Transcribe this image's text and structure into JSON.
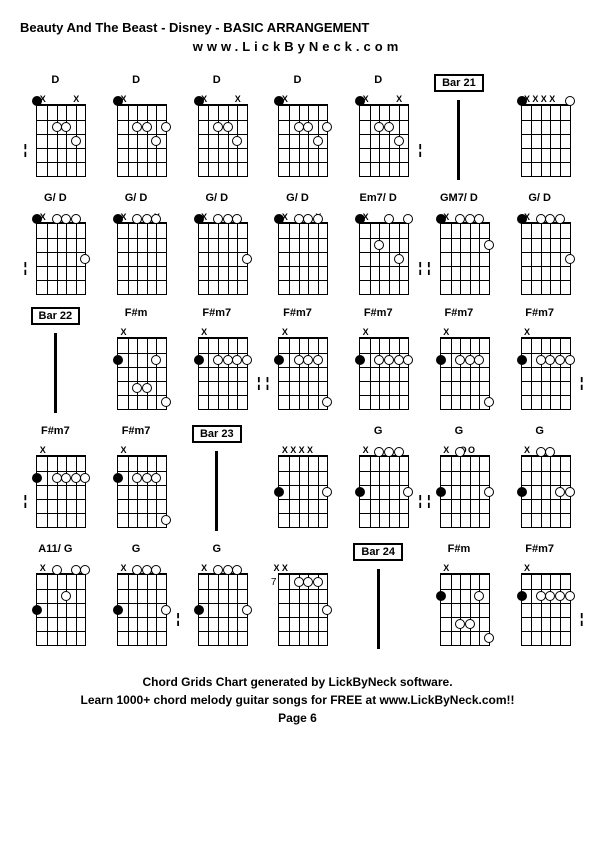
{
  "title": "Beauty And The Beast - Disney - BASIC ARRANGEMENT",
  "url": "www.LickByNeck.com",
  "footer_line1": "Chord Grids Chart generated by LickByNeck software.",
  "footer_line2": "Learn 1000+ chord melody guitar songs for FREE at www.LickByNeck.com!!",
  "page": "Page 6",
  "colors": {
    "background": "#ffffff",
    "text": "#000000",
    "lines": "#000000"
  },
  "fretboard": {
    "strings": 6,
    "frets": 5,
    "width": 48,
    "height": 70
  },
  "cells": [
    {
      "type": "chord",
      "label": "D",
      "mutes": [
        "",
        "X",
        "",
        "",
        "",
        "X"
      ],
      "dots": [
        {
          "s": 0,
          "f": 0,
          "filled": true
        },
        {
          "s": 2,
          "f": 2
        },
        {
          "s": 3,
          "f": 2
        },
        {
          "s": 4,
          "f": 3
        }
      ],
      "dashLeft": true
    },
    {
      "type": "chord",
      "label": "D",
      "mutes": [
        "",
        "X",
        "",
        "",
        "",
        ""
      ],
      "dots": [
        {
          "s": 0,
          "f": 0,
          "filled": true
        },
        {
          "s": 2,
          "f": 2
        },
        {
          "s": 3,
          "f": 2
        },
        {
          "s": 4,
          "f": 3
        },
        {
          "s": 5,
          "f": 2
        }
      ]
    },
    {
      "type": "chord",
      "label": "D",
      "mutes": [
        "",
        "X",
        "",
        "",
        "",
        "X"
      ],
      "dots": [
        {
          "s": 0,
          "f": 0,
          "filled": true
        },
        {
          "s": 2,
          "f": 2
        },
        {
          "s": 3,
          "f": 2
        },
        {
          "s": 4,
          "f": 3
        }
      ]
    },
    {
      "type": "chord",
      "label": "D",
      "mutes": [
        "",
        "X",
        "",
        "",
        "",
        ""
      ],
      "dots": [
        {
          "s": 0,
          "f": 0,
          "filled": true
        },
        {
          "s": 2,
          "f": 2
        },
        {
          "s": 3,
          "f": 2
        },
        {
          "s": 4,
          "f": 3
        },
        {
          "s": 5,
          "f": 2
        }
      ]
    },
    {
      "type": "chord",
      "label": "D",
      "mutes": [
        "",
        "X",
        "",
        "",
        "",
        "X"
      ],
      "dots": [
        {
          "s": 0,
          "f": 0,
          "filled": true
        },
        {
          "s": 2,
          "f": 2
        },
        {
          "s": 3,
          "f": 2
        },
        {
          "s": 4,
          "f": 3
        }
      ],
      "dashRight": true
    },
    {
      "type": "bar",
      "label": "Bar 21"
    },
    {
      "type": "chord",
      "label": "",
      "mutes": [
        "",
        "X",
        "X",
        "X",
        "X",
        ""
      ],
      "dots": [
        {
          "s": 0,
          "f": 0,
          "filled": true
        },
        {
          "s": 5,
          "f": 0
        }
      ]
    },
    {
      "type": "chord",
      "label": "G/ D",
      "mutes": [
        "",
        "X",
        "",
        "",
        "",
        ""
      ],
      "dots": [
        {
          "s": 0,
          "f": 0,
          "filled": true
        },
        {
          "s": 2,
          "f": 0
        },
        {
          "s": 3,
          "f": 0
        },
        {
          "s": 4,
          "f": 0
        },
        {
          "s": 5,
          "f": 3
        }
      ],
      "dashLeft": true
    },
    {
      "type": "chord",
      "label": "G/ D",
      "mutes": [
        "",
        "X",
        "",
        "",
        "",
        "X"
      ],
      "dots": [
        {
          "s": 0,
          "f": 0,
          "filled": true
        },
        {
          "s": 2,
          "f": 0
        },
        {
          "s": 3,
          "f": 0
        },
        {
          "s": 4,
          "f": 0
        }
      ]
    },
    {
      "type": "chord",
      "label": "G/ D",
      "mutes": [
        "",
        "X",
        "",
        "",
        "",
        ""
      ],
      "dots": [
        {
          "s": 0,
          "f": 0,
          "filled": true
        },
        {
          "s": 2,
          "f": 0
        },
        {
          "s": 3,
          "f": 0
        },
        {
          "s": 4,
          "f": 0
        },
        {
          "s": 5,
          "f": 3
        }
      ]
    },
    {
      "type": "chord",
      "label": "G/ D",
      "mutes": [
        "",
        "X",
        "",
        "",
        "",
        "X"
      ],
      "dots": [
        {
          "s": 0,
          "f": 0,
          "filled": true
        },
        {
          "s": 2,
          "f": 0
        },
        {
          "s": 3,
          "f": 0
        },
        {
          "s": 4,
          "f": 0
        }
      ]
    },
    {
      "type": "chord",
      "label": "Em7/ D",
      "mutes": [
        "",
        "X",
        "",
        "",
        "",
        ""
      ],
      "dots": [
        {
          "s": 0,
          "f": 0,
          "filled": true
        },
        {
          "s": 2,
          "f": 2
        },
        {
          "s": 3,
          "f": 0
        },
        {
          "s": 4,
          "f": 3
        },
        {
          "s": 5,
          "f": 0
        }
      ],
      "dashRight": true
    },
    {
      "type": "chord",
      "label": "GM7/ D",
      "mutes": [
        "",
        "X",
        "",
        "",
        "",
        ""
      ],
      "dots": [
        {
          "s": 0,
          "f": 0,
          "filled": true
        },
        {
          "s": 2,
          "f": 0
        },
        {
          "s": 3,
          "f": 0
        },
        {
          "s": 4,
          "f": 0
        },
        {
          "s": 5,
          "f": 2
        }
      ],
      "dashLeft": true
    },
    {
      "type": "chord",
      "label": "G/ D",
      "mutes": [
        "",
        "X",
        "",
        "",
        "",
        ""
      ],
      "dots": [
        {
          "s": 0,
          "f": 0,
          "filled": true
        },
        {
          "s": 2,
          "f": 0
        },
        {
          "s": 3,
          "f": 0
        },
        {
          "s": 4,
          "f": 0
        },
        {
          "s": 5,
          "f": 3
        }
      ]
    },
    {
      "type": "bar",
      "label": "Bar 22"
    },
    {
      "type": "chord",
      "label": "F#m",
      "mutes": [
        "",
        "X",
        "",
        "",
        "",
        ""
      ],
      "dots": [
        {
          "s": 0,
          "f": 2,
          "filled": true
        },
        {
          "s": 2,
          "f": 4
        },
        {
          "s": 3,
          "f": 4
        },
        {
          "s": 4,
          "f": 2
        },
        {
          "s": 5,
          "f": 5
        }
      ]
    },
    {
      "type": "chord",
      "label": "F#m7",
      "mutes": [
        "",
        "X",
        "",
        "",
        "",
        ""
      ],
      "dots": [
        {
          "s": 0,
          "f": 2,
          "filled": true
        },
        {
          "s": 2,
          "f": 2
        },
        {
          "s": 3,
          "f": 2
        },
        {
          "s": 4,
          "f": 2
        },
        {
          "s": 5,
          "f": 2
        }
      ],
      "dashRight": true
    },
    {
      "type": "chord",
      "label": "F#m7",
      "mutes": [
        "",
        "X",
        "",
        "",
        "",
        ""
      ],
      "dots": [
        {
          "s": 0,
          "f": 2,
          "filled": true
        },
        {
          "s": 2,
          "f": 2
        },
        {
          "s": 3,
          "f": 2
        },
        {
          "s": 4,
          "f": 2
        },
        {
          "s": 5,
          "f": 5
        }
      ],
      "dashLeft": true
    },
    {
      "type": "chord",
      "label": "F#m7",
      "mutes": [
        "",
        "X",
        "",
        "",
        "",
        ""
      ],
      "dots": [
        {
          "s": 0,
          "f": 2,
          "filled": true
        },
        {
          "s": 2,
          "f": 2
        },
        {
          "s": 3,
          "f": 2
        },
        {
          "s": 4,
          "f": 2
        },
        {
          "s": 5,
          "f": 2
        }
      ]
    },
    {
      "type": "chord",
      "label": "F#m7",
      "mutes": [
        "",
        "X",
        "",
        "",
        "",
        ""
      ],
      "dots": [
        {
          "s": 0,
          "f": 2,
          "filled": true
        },
        {
          "s": 2,
          "f": 2
        },
        {
          "s": 3,
          "f": 2
        },
        {
          "s": 4,
          "f": 2
        },
        {
          "s": 5,
          "f": 5
        }
      ]
    },
    {
      "type": "chord",
      "label": "F#m7",
      "mutes": [
        "",
        "X",
        "",
        "",
        "",
        ""
      ],
      "dots": [
        {
          "s": 0,
          "f": 2,
          "filled": true
        },
        {
          "s": 2,
          "f": 2
        },
        {
          "s": 3,
          "f": 2
        },
        {
          "s": 4,
          "f": 2
        },
        {
          "s": 5,
          "f": 2
        }
      ],
      "dashRight": true
    },
    {
      "type": "chord",
      "label": "F#m7",
      "mutes": [
        "",
        "X",
        "",
        "",
        "",
        ""
      ],
      "dots": [
        {
          "s": 0,
          "f": 2,
          "filled": true
        },
        {
          "s": 2,
          "f": 2
        },
        {
          "s": 3,
          "f": 2
        },
        {
          "s": 4,
          "f": 2
        },
        {
          "s": 5,
          "f": 2
        }
      ],
      "dashLeft": true
    },
    {
      "type": "chord",
      "label": "F#m7",
      "mutes": [
        "",
        "X",
        "",
        "",
        "",
        ""
      ],
      "dots": [
        {
          "s": 0,
          "f": 2,
          "filled": true
        },
        {
          "s": 2,
          "f": 2
        },
        {
          "s": 3,
          "f": 2
        },
        {
          "s": 4,
          "f": 2
        },
        {
          "s": 5,
          "f": 5
        }
      ]
    },
    {
      "type": "bar",
      "label": "Bar 23"
    },
    {
      "type": "chord",
      "label": "",
      "mutes": [
        "",
        "X",
        "X",
        "X",
        "X",
        ""
      ],
      "dots": [
        {
          "s": 0,
          "f": 3,
          "filled": true
        },
        {
          "s": 5,
          "f": 3
        }
      ]
    },
    {
      "type": "chord",
      "label": "G",
      "mutes": [
        "",
        "X",
        "",
        "",
        "",
        ""
      ],
      "dots": [
        {
          "s": 0,
          "f": 3,
          "filled": true
        },
        {
          "s": 2,
          "f": 0
        },
        {
          "s": 3,
          "f": 0
        },
        {
          "s": 4,
          "f": 0
        },
        {
          "s": 5,
          "f": 3
        }
      ],
      "dashRight": true
    },
    {
      "type": "chord",
      "label": "G",
      "mutes": [
        "",
        "X",
        "",
        "O",
        "O",
        ""
      ],
      "dots": [
        {
          "s": 0,
          "f": 3,
          "filled": true
        },
        {
          "s": 2,
          "f": 0
        },
        {
          "s": 5,
          "f": 3
        }
      ],
      "dashLeft": true
    },
    {
      "type": "chord",
      "label": "G",
      "mutes": [
        "",
        "X",
        "",
        "",
        "",
        ""
      ],
      "dots": [
        {
          "s": 0,
          "f": 3,
          "filled": true
        },
        {
          "s": 2,
          "f": 0
        },
        {
          "s": 3,
          "f": 0
        },
        {
          "s": 4,
          "f": 3
        },
        {
          "s": 5,
          "f": 3
        }
      ]
    },
    {
      "type": "chord",
      "label": "A11/ G",
      "mutes": [
        "",
        "X",
        "",
        "",
        "",
        ""
      ],
      "dots": [
        {
          "s": 0,
          "f": 3,
          "filled": true
        },
        {
          "s": 2,
          "f": 0
        },
        {
          "s": 3,
          "f": 2
        },
        {
          "s": 4,
          "f": 0
        },
        {
          "s": 5,
          "f": 0
        }
      ]
    },
    {
      "type": "chord",
      "label": "G",
      "mutes": [
        "",
        "X",
        "",
        "",
        "",
        ""
      ],
      "dots": [
        {
          "s": 0,
          "f": 3,
          "filled": true
        },
        {
          "s": 2,
          "f": 0
        },
        {
          "s": 3,
          "f": 0
        },
        {
          "s": 4,
          "f": 0
        },
        {
          "s": 5,
          "f": 3
        }
      ],
      "dashRight": true
    },
    {
      "type": "chord",
      "label": "G",
      "mutes": [
        "",
        "X",
        "",
        "",
        "",
        ""
      ],
      "dots": [
        {
          "s": 0,
          "f": 3,
          "filled": true
        },
        {
          "s": 2,
          "f": 0
        },
        {
          "s": 3,
          "f": 0
        },
        {
          "s": 4,
          "f": 0
        },
        {
          "s": 5,
          "f": 3
        }
      ]
    },
    {
      "type": "chord",
      "label": "",
      "mutes": [
        "X",
        "X",
        "",
        "",
        "",
        ""
      ],
      "fretInd": "7",
      "dots": [
        {
          "s": 2,
          "f": 1
        },
        {
          "s": 3,
          "f": 1
        },
        {
          "s": 4,
          "f": 1
        },
        {
          "s": 5,
          "f": 3
        }
      ]
    },
    {
      "type": "bar",
      "label": "Bar 24"
    },
    {
      "type": "chord",
      "label": "F#m",
      "mutes": [
        "",
        "X",
        "",
        "",
        "",
        ""
      ],
      "dots": [
        {
          "s": 0,
          "f": 2,
          "filled": true
        },
        {
          "s": 2,
          "f": 4
        },
        {
          "s": 3,
          "f": 4
        },
        {
          "s": 4,
          "f": 2
        },
        {
          "s": 5,
          "f": 5
        }
      ]
    },
    {
      "type": "chord",
      "label": "F#m7",
      "mutes": [
        "",
        "X",
        "",
        "",
        "",
        ""
      ],
      "dots": [
        {
          "s": 0,
          "f": 2,
          "filled": true
        },
        {
          "s": 2,
          "f": 2
        },
        {
          "s": 3,
          "f": 2
        },
        {
          "s": 4,
          "f": 2
        },
        {
          "s": 5,
          "f": 2
        }
      ],
      "dashRight": true
    }
  ]
}
